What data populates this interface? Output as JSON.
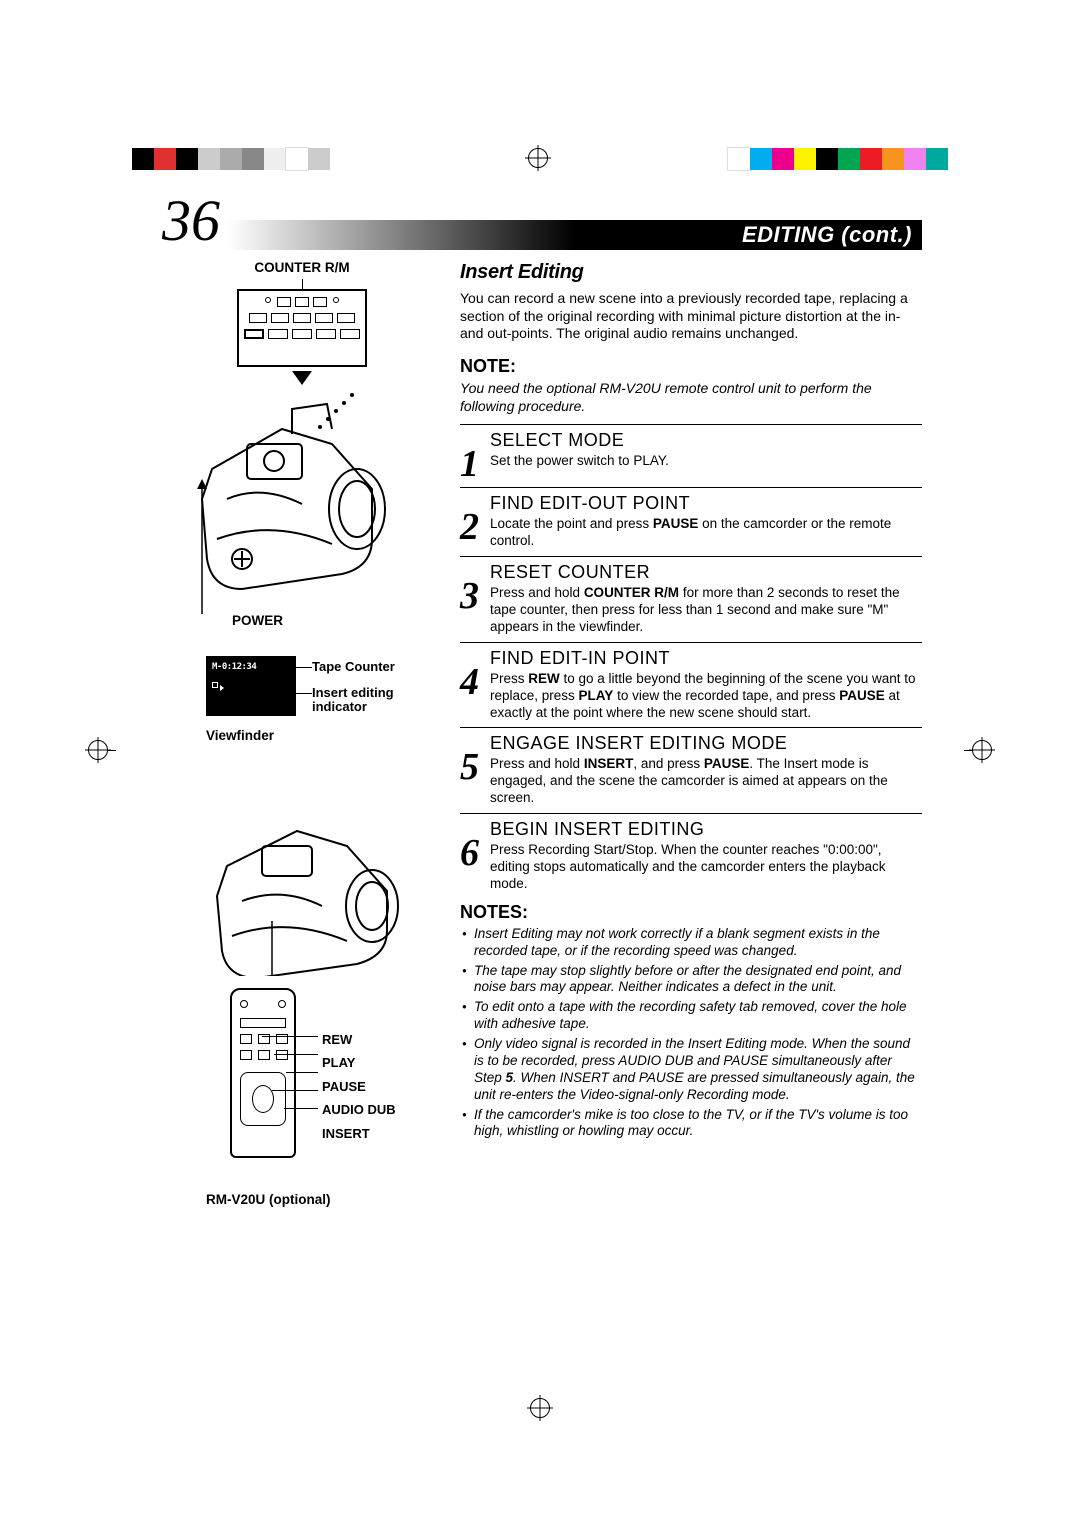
{
  "print_marks": {
    "left_bars": [
      "#000000",
      "#e03030",
      "#000000",
      "#cccccc",
      "#aaaaaa",
      "#888888",
      "#eeeeee",
      "#ffffff",
      "#cccccc"
    ],
    "right_bars": [
      "#ffffff",
      "#00aeef",
      "#ec008c",
      "#fff200",
      "#000000",
      "#00a651",
      "#ed1c24",
      "#f7941d",
      "#ee82ee",
      "#00a99d"
    ]
  },
  "header": {
    "page_number": "36",
    "title": "EDITING (cont.)"
  },
  "left": {
    "counter_label": "COUNTER R/M",
    "power_label": "POWER",
    "vf_counter": "M-0:12:34",
    "tape_counter_label": "Tape Counter",
    "insert_ind_label_1": "Insert editing",
    "insert_ind_label_2": "indicator",
    "viewfinder_label": "Viewfinder",
    "remote_labels": [
      "REW",
      "PLAY",
      "PAUSE",
      "AUDIO DUB",
      "INSERT"
    ],
    "remote_caption": "RM-V20U (optional)"
  },
  "right": {
    "section_title": "Insert Editing",
    "intro": "You can record a new scene into a previously recorded tape, replacing a section of the original recording with minimal picture distortion at the in- and out-points. The original audio remains unchanged.",
    "note_head": "NOTE:",
    "note_body": "You need the optional RM-V20U remote control unit to perform the following procedure.",
    "steps": [
      {
        "num": "1",
        "title": "SELECT MODE",
        "body": "Set the power switch to PLAY."
      },
      {
        "num": "2",
        "title": "FIND EDIT-OUT POINT",
        "body_html": "Locate the point and press <b>PAUSE</b> on the camcorder or the remote control."
      },
      {
        "num": "3",
        "title": "RESET COUNTER",
        "body_html": "Press and hold <b>COUNTER R/M</b> for more than 2 seconds to reset the tape counter, then press for less than 1 second and make sure \"M\" appears in the viewfinder."
      },
      {
        "num": "4",
        "title": "FIND EDIT-IN POINT",
        "body_html": "Press <b>REW</b> to go a little beyond the beginning of the scene you want to replace, press <b>PLAY</b> to view the recorded tape, and press <b>PAUSE</b> at exactly at the point where the new scene should start."
      },
      {
        "num": "5",
        "title": "ENGAGE INSERT EDITING MODE",
        "body_html": "Press and hold <b>INSERT</b>, and press <b>PAUSE</b>. The Insert mode is engaged, and the scene the camcorder is aimed at appears on the screen."
      },
      {
        "num": "6",
        "title": "BEGIN INSERT EDITING",
        "body_html": "Press Recording Start/Stop. When the counter reaches \"0:00:00\", editing stops automatically and the camcorder enters the playback mode."
      }
    ],
    "notes_head": "NOTES:",
    "notes": [
      "Insert Editing may not work correctly if a blank segment exists in the recorded tape, or if the recording speed was changed.",
      "The tape may stop slightly before or after the designated end point, and noise bars may appear. Neither indicates a defect in the unit.",
      "To edit onto a tape with the recording safety tab removed, cover the hole with adhesive tape.",
      "Only video signal is recorded in the Insert Editing mode. When the sound is to be recorded, press AUDIO DUB and PAUSE simultaneously after Step <b>5</b>. When INSERT and PAUSE are pressed simultaneously again, the unit re-enters the Video-signal-only Recording mode.",
      "If the camcorder's mike is too close to the TV, or if the TV's volume is too high, whistling or howling may occur."
    ]
  }
}
